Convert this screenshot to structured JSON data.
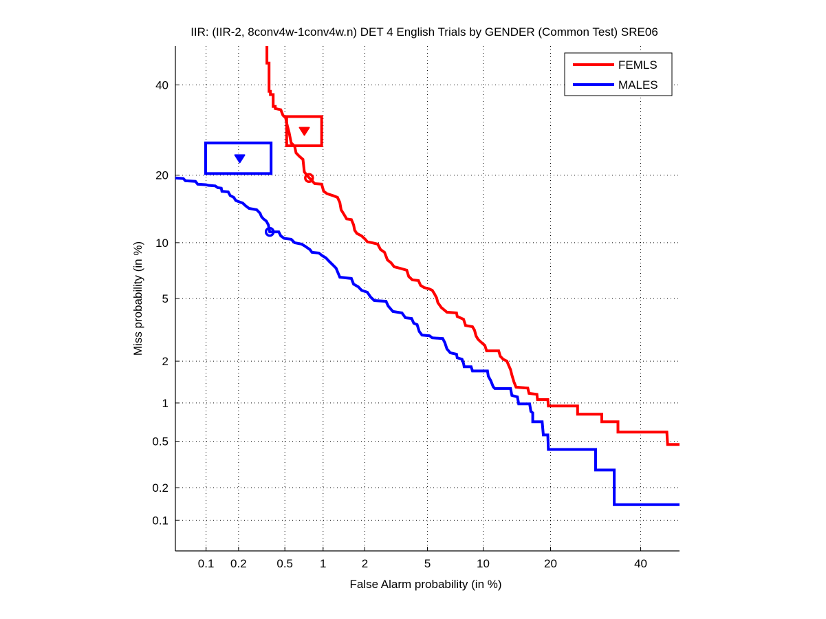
{
  "chart_data": {
    "type": "line",
    "scale": "probit (DET normal deviate)",
    "title": "IIR: (IIR-2, 8conv4w-1conv4w.n) DET 4 English Trials by GENDER (Common Test) SRE06",
    "xlabel": "False Alarm probability (in %)",
    "ylabel": "Miss probability (in %)",
    "xlim": [
      0.05,
      50
    ],
    "ylim": [
      0.05,
      50
    ],
    "grid": true,
    "legend_position": "top-right",
    "x_ticks": [
      {
        "value": 0.1,
        "label": "0.1"
      },
      {
        "value": 0.2,
        "label": "0.2"
      },
      {
        "value": 0.5,
        "label": "0.5"
      },
      {
        "value": 1,
        "label": "1"
      },
      {
        "value": 2,
        "label": "2"
      },
      {
        "value": 5,
        "label": "5"
      },
      {
        "value": 10,
        "label": "10"
      },
      {
        "value": 20,
        "label": "20"
      },
      {
        "value": 40,
        "label": "40"
      }
    ],
    "y_ticks": [
      {
        "value": 0.1,
        "label": "0.1"
      },
      {
        "value": 0.2,
        "label": "0.2"
      },
      {
        "value": 0.5,
        "label": "0.5"
      },
      {
        "value": 1,
        "label": "1"
      },
      {
        "value": 2,
        "label": "2"
      },
      {
        "value": 5,
        "label": "5"
      },
      {
        "value": 10,
        "label": "10"
      },
      {
        "value": 20,
        "label": "20"
      },
      {
        "value": 40,
        "label": "40"
      }
    ],
    "series": [
      {
        "name": "FEMLS",
        "color": "#ff0000",
        "x": [
          0.354,
          0.354,
          0.369,
          0.369,
          0.379,
          0.379,
          0.4,
          0.4,
          0.416,
          0.416,
          0.463,
          0.482,
          0.507,
          0.521,
          0.541,
          0.555,
          0.563,
          0.6,
          0.616,
          0.656,
          0.699,
          0.717,
          0.763,
          0.863,
          0.975,
          1.01,
          1.07,
          1.18,
          1.28,
          1.33,
          1.36,
          1.44,
          1.49,
          1.61,
          1.67,
          1.7,
          1.76,
          1.9,
          2.01,
          2.08,
          2.24,
          2.44,
          2.55,
          2.71,
          2.83,
          2.98,
          3.13,
          3.4,
          3.75,
          3.86,
          4.06,
          4.42,
          4.55,
          4.77,
          5.1,
          5.33,
          5.48,
          5.64,
          5.74,
          6.0,
          6.45,
          7.28,
          7.34,
          7.93,
          8.13,
          8.83,
          9.05,
          9.2,
          9.42,
          9.73,
          10.2,
          10.4,
          11.9,
          12.1,
          12.5,
          13.0,
          13.2,
          13.5,
          13.7,
          14.0,
          14.3,
          16.1,
          16.3,
          17.6,
          17.7,
          19.5,
          19.6,
          25.3,
          25.3,
          30.6,
          30.6,
          34.4,
          34.4,
          46.7,
          46.9,
          50
        ],
        "y": [
          50,
          45.6,
          45.6,
          38.4,
          38.4,
          37.6,
          37.6,
          34.7,
          34.7,
          34.2,
          33.9,
          32.6,
          32.0,
          30.4,
          28.7,
          27.2,
          26.4,
          25.7,
          24.3,
          23.6,
          23.0,
          20.6,
          19.8,
          18.5,
          18.4,
          17.2,
          16.8,
          16.5,
          16.2,
          15.4,
          14.3,
          13.5,
          13.0,
          12.9,
          12.2,
          11.5,
          11.1,
          10.8,
          10.4,
          10.1,
          10.0,
          9.84,
          9.24,
          8.94,
          8.17,
          7.9,
          7.51,
          7.38,
          7.2,
          6.66,
          6.37,
          6.32,
          5.94,
          5.78,
          5.68,
          5.57,
          5.33,
          5.04,
          4.72,
          4.42,
          4.14,
          4.1,
          3.9,
          3.75,
          3.43,
          3.37,
          3.2,
          2.95,
          2.8,
          2.69,
          2.55,
          2.35,
          2.35,
          2.16,
          2.06,
          2.0,
          1.89,
          1.75,
          1.6,
          1.43,
          1.31,
          1.29,
          1.18,
          1.16,
          1.06,
          1.06,
          0.949,
          0.949,
          0.82,
          0.82,
          0.716,
          0.716,
          0.593,
          0.593,
          0.47,
          0.47
        ],
        "det_box": {
          "x": [
            0.517,
            0.975
          ],
          "y": [
            25.8,
            32.3
          ]
        },
        "triangle_point": {
          "x": 0.717,
          "y": 29.0
        },
        "circle_point": {
          "x": 0.78,
          "y": 19.5
        }
      },
      {
        "name": "MALES",
        "color": "#0000ff",
        "x": [
          0.05,
          0.06,
          0.063,
          0.079,
          0.083,
          0.1,
          0.105,
          0.122,
          0.129,
          0.139,
          0.141,
          0.161,
          0.168,
          0.181,
          0.189,
          0.203,
          0.218,
          0.231,
          0.248,
          0.289,
          0.309,
          0.318,
          0.331,
          0.35,
          0.364,
          0.374,
          0.405,
          0.445,
          0.463,
          0.494,
          0.563,
          0.6,
          0.681,
          0.726,
          0.792,
          0.822,
          0.929,
          0.987,
          1.05,
          1.11,
          1.18,
          1.25,
          1.28,
          1.33,
          1.61,
          1.67,
          1.8,
          1.9,
          2.08,
          2.19,
          2.32,
          2.77,
          2.86,
          3.07,
          3.5,
          3.68,
          4.02,
          4.14,
          4.34,
          4.47,
          4.64,
          5.14,
          5.33,
          6.11,
          6.28,
          6.45,
          6.73,
          7.28,
          7.34,
          7.79,
          7.93,
          7.99,
          8.69,
          8.83,
          10.5,
          10.6,
          10.9,
          11.2,
          11.4,
          13.5,
          13.7,
          14.5,
          14.7,
          16.4,
          16.6,
          16.9,
          16.9,
          18.5,
          18.7,
          19.5,
          19.6,
          29.2,
          29.2,
          33.5,
          33.5,
          50
        ],
        "y": [
          19.5,
          19.4,
          19.0,
          18.9,
          18.4,
          18.3,
          18.2,
          18.1,
          17.8,
          17.7,
          17.2,
          17.1,
          16.5,
          16.2,
          15.7,
          15.5,
          15.3,
          14.9,
          14.5,
          14.3,
          13.8,
          13.3,
          13.0,
          12.7,
          12.2,
          11.3,
          11.3,
          11.3,
          10.8,
          10.5,
          10.4,
          10.0,
          9.84,
          9.61,
          9.24,
          8.94,
          8.87,
          8.58,
          8.37,
          8.03,
          7.7,
          7.38,
          7.08,
          6.6,
          6.49,
          6.04,
          5.83,
          5.57,
          5.43,
          5.09,
          4.86,
          4.81,
          4.51,
          4.18,
          4.1,
          3.83,
          3.79,
          3.54,
          3.47,
          3.14,
          2.98,
          2.95,
          2.86,
          2.83,
          2.66,
          2.42,
          2.28,
          2.23,
          2.11,
          2.06,
          1.93,
          1.83,
          1.83,
          1.71,
          1.71,
          1.57,
          1.46,
          1.32,
          1.28,
          1.28,
          1.14,
          1.11,
          0.984,
          0.984,
          0.862,
          0.841,
          0.716,
          0.716,
          0.563,
          0.563,
          0.428,
          0.428,
          0.286,
          0.286,
          0.14,
          0.14
        ],
        "det_box": {
          "x": [
            0.099,
            0.384
          ],
          "y": [
            20.3,
            26.4
          ]
        },
        "triangle_point": {
          "x": 0.205,
          "y": 23.2
        },
        "circle_point": {
          "x": 0.374,
          "y": 11.3
        }
      }
    ]
  }
}
